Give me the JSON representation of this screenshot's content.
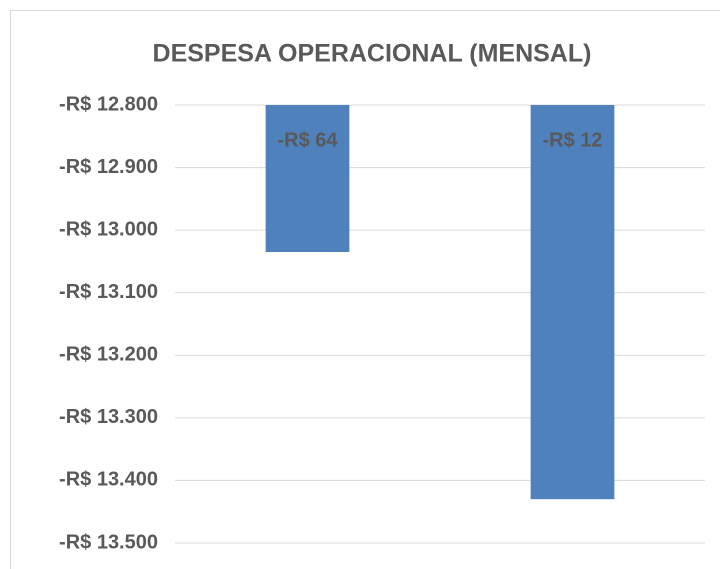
{
  "chart_data": {
    "type": "bar",
    "title": "DESPESA OPERACIONAL (MENSAL)",
    "categories": [
      null,
      null
    ],
    "values": [
      -13035,
      -13430
    ],
    "annotations": [
      "-R$ 64",
      "-R$ 12"
    ],
    "color": "#4f81bd",
    "ylim": [
      -13500,
      -12800
    ],
    "yticks": [
      {
        "value": -12800,
        "label": "-R$ 12.800"
      },
      {
        "value": -12900,
        "label": "-R$ 12.900"
      },
      {
        "value": -13000,
        "label": "-R$ 13.000"
      },
      {
        "value": -13100,
        "label": "-R$ 13.100"
      },
      {
        "value": -13200,
        "label": "-R$ 13.200"
      },
      {
        "value": -13300,
        "label": "-R$ 13.300"
      },
      {
        "value": -13400,
        "label": "-R$ 13.400"
      },
      {
        "value": -13500,
        "label": "-R$ 13.500"
      }
    ],
    "grid": true
  }
}
